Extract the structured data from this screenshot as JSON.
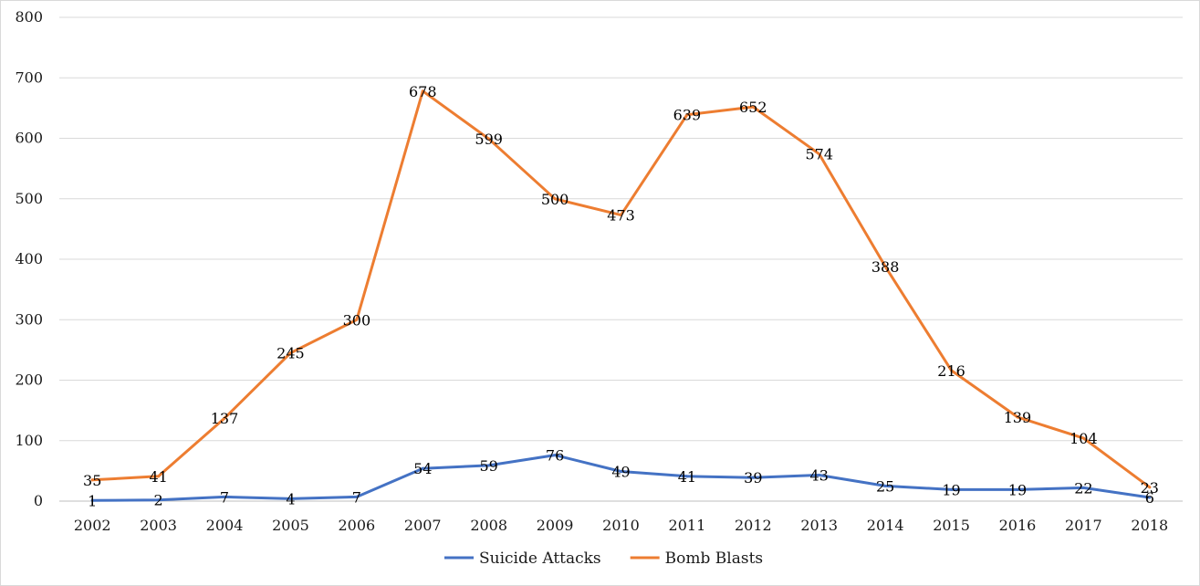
{
  "chart_data": {
    "type": "line",
    "title": "",
    "xlabel": "",
    "ylabel": "",
    "categories": [
      "2002",
      "2003",
      "2004",
      "2005",
      "2006",
      "2007",
      "2008",
      "2009",
      "2010",
      "2011",
      "2012",
      "2013",
      "2014",
      "2015",
      "2016",
      "2017",
      "2018"
    ],
    "ylim": [
      0,
      800
    ],
    "yticks": [
      0,
      100,
      200,
      300,
      400,
      500,
      600,
      700,
      800
    ],
    "grid": true,
    "legend_position": "bottom",
    "data_labels": true,
    "series": [
      {
        "name": "Suicide Attacks",
        "color": "#4472c4",
        "values": [
          1,
          2,
          7,
          4,
          7,
          54,
          59,
          76,
          49,
          41,
          39,
          43,
          25,
          19,
          19,
          22,
          6
        ]
      },
      {
        "name": "Bomb Blasts",
        "color": "#ed7d31",
        "values": [
          35,
          41,
          137,
          245,
          300,
          678,
          599,
          500,
          473,
          639,
          652,
          574,
          388,
          216,
          139,
          104,
          23
        ]
      }
    ]
  }
}
